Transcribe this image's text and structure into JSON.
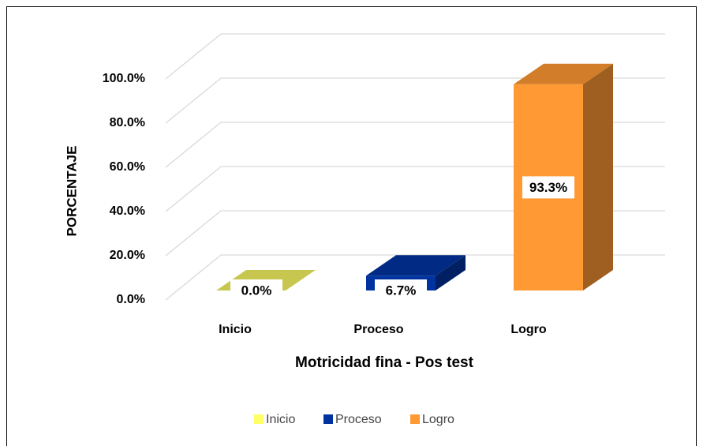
{
  "chart_data": {
    "type": "bar3d",
    "xlabel": "Motricidad fina - Pos test",
    "ylabel": "PORCENTAJE",
    "categories": [
      "Inicio",
      "Proceso",
      "Logro"
    ],
    "values": [
      0,
      6.7,
      93.3
    ],
    "value_labels": [
      "0.0%",
      "6.7%",
      "93.3%"
    ],
    "colors": [
      "#ffff66",
      "#0033a0",
      "#ff9933"
    ],
    "ylim": [
      0,
      100
    ],
    "yticks": [
      {
        "value": 0,
        "label": "0.0%"
      },
      {
        "value": 20,
        "label": "20.0%"
      },
      {
        "value": 40,
        "label": "40.0%"
      },
      {
        "value": 60,
        "label": "60.0%"
      },
      {
        "value": 80,
        "label": "80.0%"
      },
      {
        "value": 100,
        "label": "100.0%"
      }
    ],
    "grid": true,
    "legend": "bottom"
  }
}
